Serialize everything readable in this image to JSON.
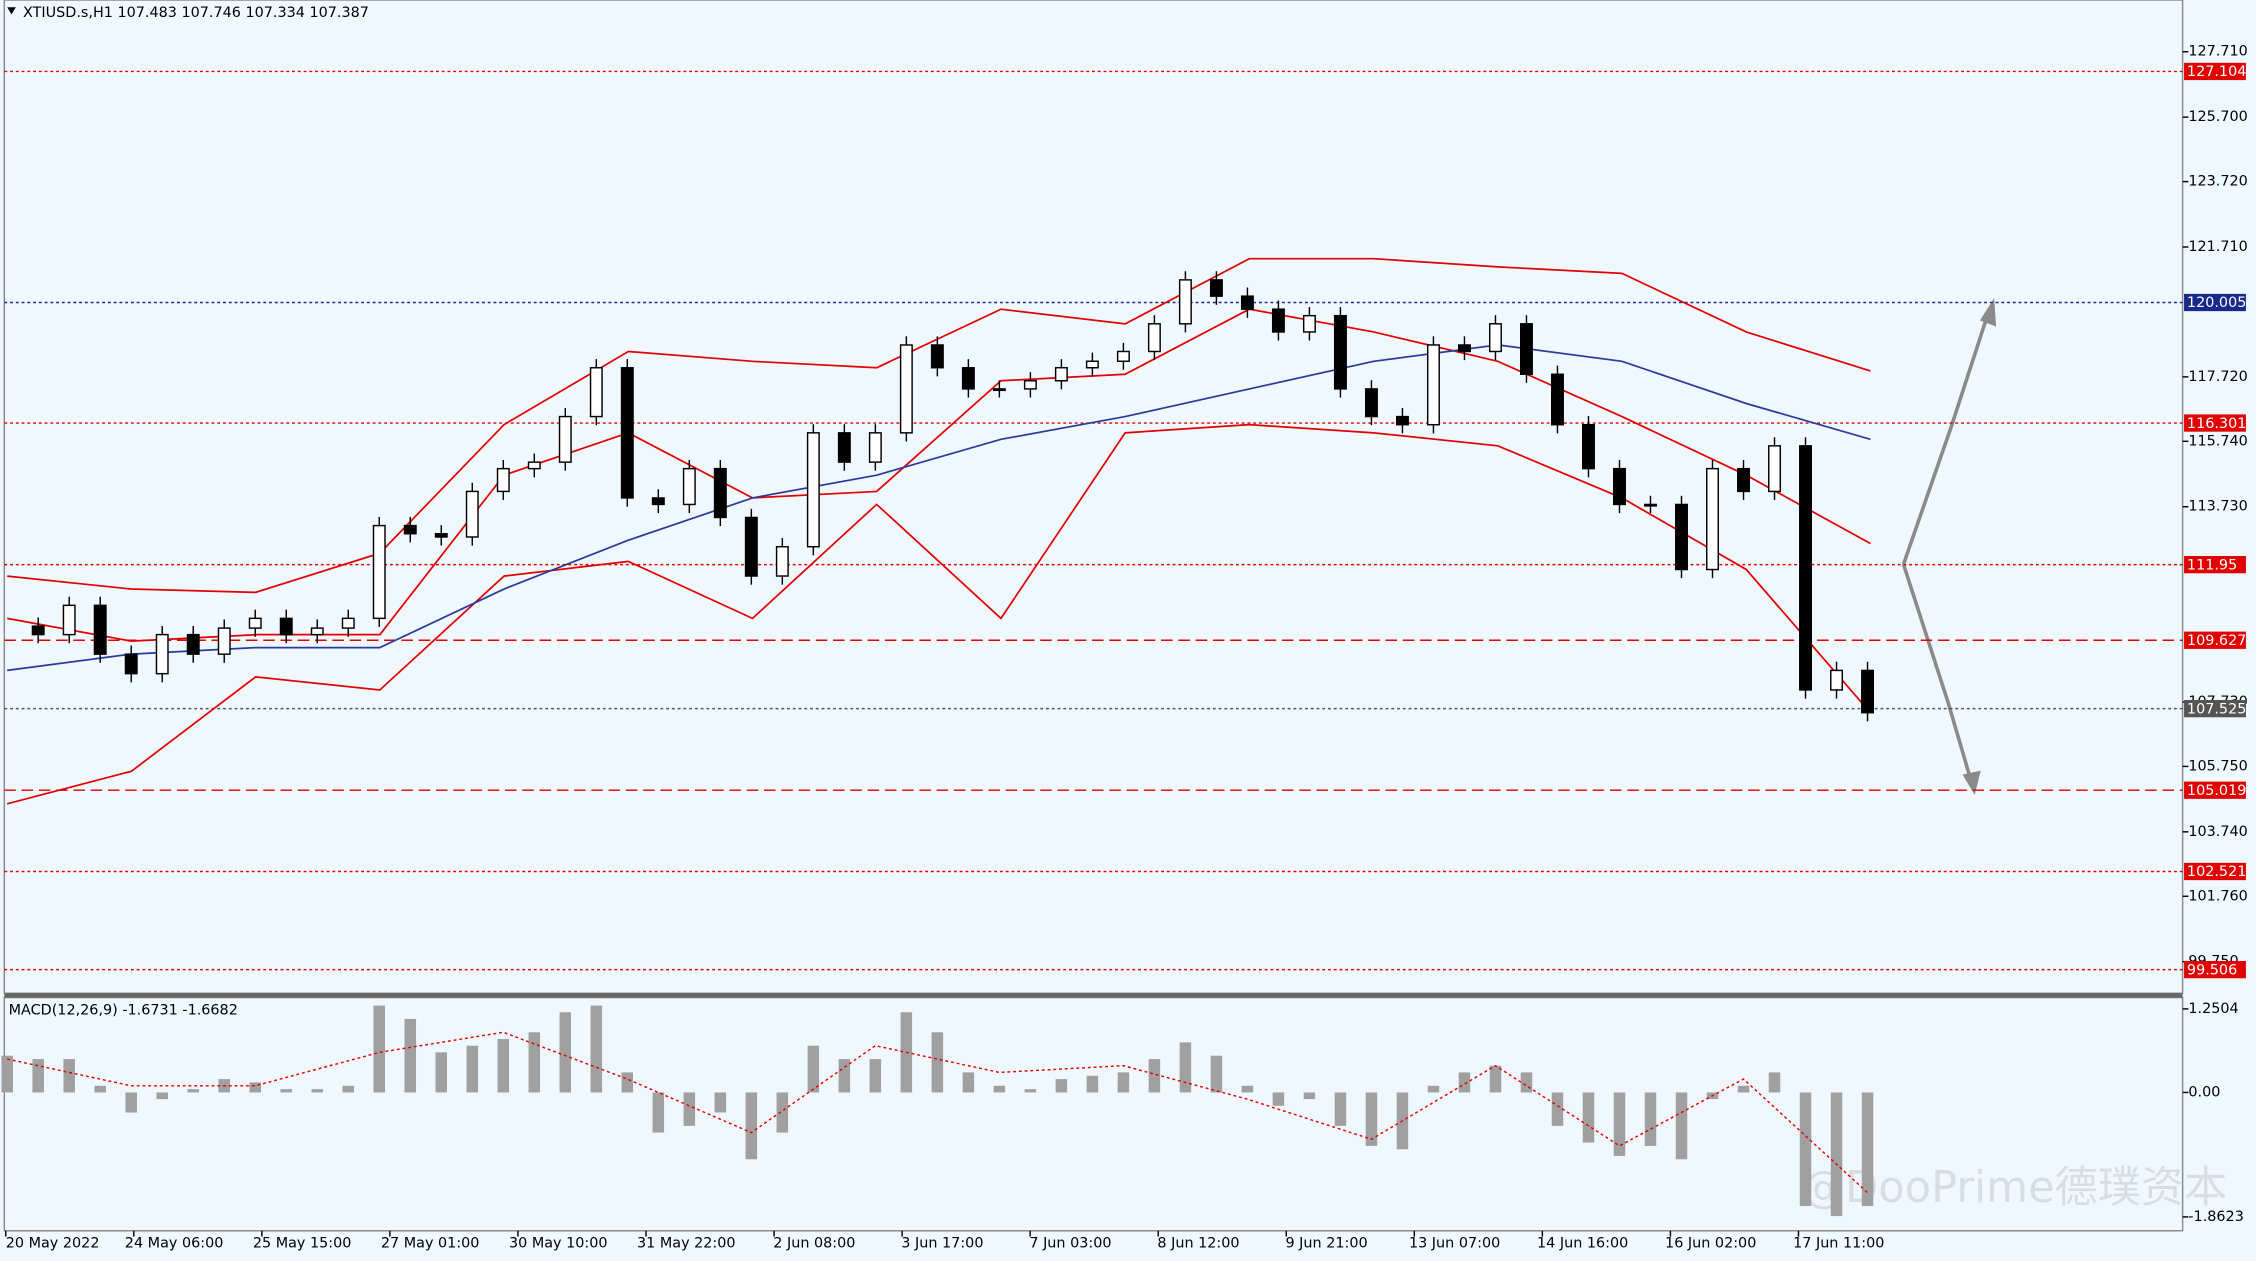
{
  "chart_data": {
    "type": "candlestick",
    "title": "XTIUSD.s,H1 107.483 107.746 107.334 107.387",
    "categories": [
      "20 May 2022",
      "24 May 06:00",
      "25 May 15:00",
      "27 May 01:00",
      "30 May 10:00",
      "31 May 22:00",
      "2 Jun 08:00",
      "3 Jun 17:00",
      "7 Jun 03:00",
      "8 Jun 12:00",
      "9 Jun 21:00",
      "13 Jun 07:00",
      "14 Jun 16:00",
      "16 Jun 02:00",
      "17 Jun 11:00"
    ],
    "closes": [
      110.06,
      109.8,
      110.7,
      109.2,
      108.6,
      109.8,
      109.2,
      110.0,
      110.3,
      109.8,
      110.0,
      110.3,
      113.15,
      112.9,
      112.8,
      114.2,
      114.9,
      115.1,
      116.5,
      118.0,
      114.0,
      113.8,
      114.9,
      113.4,
      111.6,
      112.5,
      116.0,
      115.1,
      116.0,
      118.7,
      118.0,
      117.35,
      117.35,
      117.6,
      118.0,
      118.2,
      118.5,
      119.35,
      120.7,
      120.2,
      119.8,
      119.1,
      119.6,
      117.35,
      116.5,
      116.25,
      118.7,
      118.5,
      119.35,
      117.8,
      116.25,
      114.9,
      113.8,
      113.8,
      111.8,
      114.9,
      114.2,
      115.6,
      108.1,
      108.7,
      107.4
    ],
    "overlays": [
      {
        "color": "#e00000",
        "values": [
          111.6,
          111.2,
          111.1,
          112.3,
          116.25,
          118.5,
          118.2,
          118.0,
          119.8,
          119.35,
          121.35,
          121.35,
          121.1,
          120.9,
          119.1,
          117.9
        ]
      },
      {
        "color": "#e00000",
        "values": [
          110.3,
          109.6,
          109.8,
          109.8,
          114.7,
          116.0,
          114.0,
          114.2,
          117.6,
          117.8,
          119.8,
          119.1,
          118.2,
          116.5,
          114.7,
          112.6
        ]
      },
      {
        "color": "#e00000",
        "values": [
          104.6,
          105.6,
          108.5,
          108.1,
          111.6,
          112.05,
          110.3,
          113.8,
          110.3,
          116.0,
          116.25,
          116.0,
          115.6,
          114.0,
          111.8,
          107.4
        ]
      },
      {
        "color": "#2a3a9a",
        "values": [
          108.7,
          109.2,
          109.4,
          109.4,
          111.2,
          112.7,
          114.0,
          114.7,
          115.8,
          116.5,
          117.35,
          118.2,
          118.7,
          118.2,
          116.9,
          115.8
        ]
      }
    ],
    "ylim": [
      98.78,
      129.3
    ],
    "yticks": [
      {
        "value": 127.71,
        "label": "127.710"
      },
      {
        "value": 125.7,
        "label": "125.700"
      },
      {
        "value": 123.72,
        "label": "123.720"
      },
      {
        "value": 121.71,
        "label": "121.710"
      },
      {
        "value": 117.72,
        "label": "117.720"
      },
      {
        "value": 115.74,
        "label": "115.740"
      },
      {
        "value": 113.73,
        "label": "113.730"
      },
      {
        "value": 107.73,
        "label": "107.730"
      },
      {
        "value": 105.75,
        "label": "105.750"
      },
      {
        "value": 103.74,
        "label": "103.740"
      },
      {
        "value": 101.76,
        "label": "101.760"
      },
      {
        "value": 99.75,
        "label": "99.750"
      }
    ],
    "levels": [
      {
        "value": 127.104,
        "color": "#e00000",
        "style": "dotted"
      },
      {
        "value": 120.005,
        "color": "#1a2a8a",
        "style": "dotted"
      },
      {
        "value": 116.301,
        "color": "#e00000",
        "style": "dotted"
      },
      {
        "value": 111.95,
        "color": "#e00000",
        "style": "dotted"
      },
      {
        "value": 109.627,
        "color": "#e00000",
        "style": "dashed"
      },
      {
        "value": 107.525,
        "color": "#555555",
        "style": "dotted"
      },
      {
        "value": 105.019,
        "color": "#e00000",
        "style": "dashed"
      },
      {
        "value": 102.521,
        "color": "#e00000",
        "style": "dotted"
      },
      {
        "value": 99.506,
        "color": "#e00000",
        "style": "dotted"
      }
    ],
    "macd": {
      "label": "MACD(12,26,9) -1.6731 -1.6682",
      "color": "#a0a0a0",
      "signal_color": "#e00000",
      "ylim": [
        -2.07,
        1.42
      ],
      "yticks": [
        1.2504,
        {
          "value": 0,
          "label": "0.00"
        },
        -1.8623
      ],
      "values": [
        0.55,
        0.5,
        0.5,
        0.1,
        -0.3,
        -0.1,
        0.05,
        0.2,
        0.15,
        0.05,
        0.05,
        0.1,
        1.3,
        1.1,
        0.6,
        0.7,
        0.8,
        0.9,
        1.2,
        1.3,
        0.3,
        -0.6,
        -0.5,
        -0.3,
        -1.0,
        -0.6,
        0.7,
        0.5,
        0.5,
        1.2,
        0.9,
        0.3,
        0.1,
        0.05,
        0.2,
        0.25,
        0.3,
        0.5,
        0.75,
        0.55,
        0.1,
        -0.2,
        -0.1,
        -0.5,
        -0.8,
        -0.85,
        0.1,
        0.3,
        0.4,
        0.3,
        -0.5,
        -0.75,
        -0.95,
        -0.8,
        -1.0,
        -0.1,
        0.1,
        0.3,
        -1.7,
        -1.85,
        -1.7
      ],
      "signal": [
        0.5,
        0.1,
        0.1,
        0.6,
        0.9,
        0.2,
        -0.6,
        0.7,
        0.3,
        0.4,
        -0.1,
        -0.7,
        0.4,
        -0.8,
        0.2,
        -1.5
      ]
    },
    "watermark": "@DooPrime德璞资本"
  }
}
